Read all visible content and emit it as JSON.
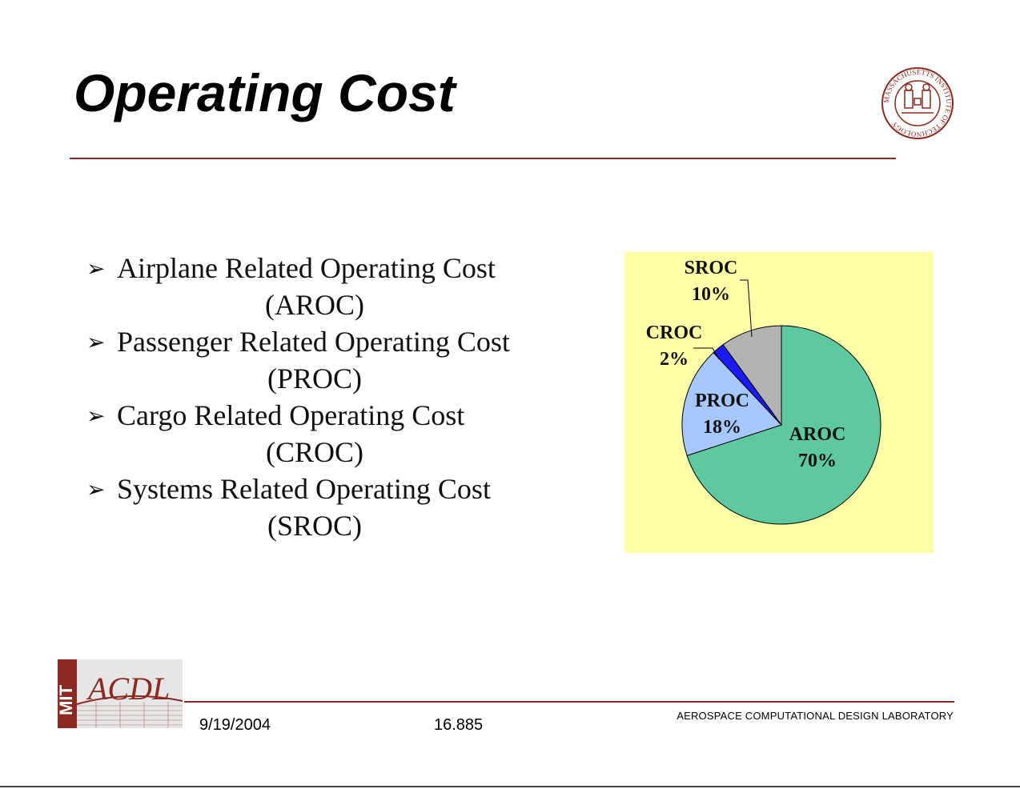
{
  "slide": {
    "title": "Operating Cost",
    "seal_text": "MASSACHUSETTS INSTITUTE OF TECHNOLOGY",
    "logo_text": [
      "MIT",
      "ACDL"
    ]
  },
  "bullets": [
    {
      "line1": "Airplane Related Operating Cost",
      "line2": "(AROC)"
    },
    {
      "line1": "Passenger Related Operating Cost",
      "line2": "(PROC)"
    },
    {
      "line1": "Cargo Related Operating Cost",
      "line2": "(CROC)"
    },
    {
      "line1": "Systems Related Operating Cost",
      "line2": "(SROC)"
    }
  ],
  "bullet_glyph": "➢",
  "chart_data": {
    "type": "pie",
    "title": "",
    "slices": [
      {
        "label": "AROC",
        "value": 70,
        "display": "70%",
        "color": "#5ec99f"
      },
      {
        "label": "PROC",
        "value": 18,
        "display": "18%",
        "color": "#a6c8ff"
      },
      {
        "label": "CROC",
        "value": 2,
        "display": "2%",
        "color": "#1a1aff"
      },
      {
        "label": "SROC",
        "value": 10,
        "display": "10%",
        "color": "#b3b3b3"
      }
    ],
    "start": "12 o'clock",
    "direction": "clockwise",
    "background": "#ffffa8"
  },
  "footer": {
    "date": "9/19/2004",
    "course": "16.885",
    "lab": "AEROSPACE COMPUTATIONAL DESIGN LABORATORY"
  },
  "colors": {
    "accent": "#8b2a22"
  }
}
